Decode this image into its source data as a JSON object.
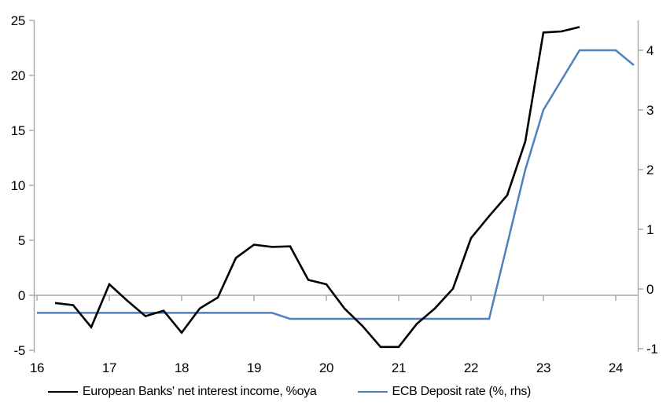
{
  "colors": {
    "background": "#FFFFFF",
    "axis": "#A6A6A6",
    "zero_line": "#A6A6A6",
    "text": "#000000",
    "series_black": "#000000",
    "series_blue": "#4E81BD"
  },
  "chart_data": {
    "type": "line",
    "title": "",
    "legend_position": "bottom",
    "grid": "zero-line-only",
    "x_axis": {
      "ticks": [
        16,
        17,
        18,
        19,
        20,
        21,
        22,
        23,
        24
      ],
      "labels": [
        "16",
        "17",
        "18",
        "19",
        "20",
        "21",
        "22",
        "23",
        "24"
      ],
      "range": [
        16,
        24.3
      ]
    },
    "left_axis": {
      "ticks": [
        25,
        20,
        15,
        10,
        5,
        0,
        -5
      ],
      "labels": [
        "25",
        "20",
        "15",
        "10",
        "5",
        "0",
        "-5"
      ],
      "range": [
        -5,
        25
      ]
    },
    "right_axis": {
      "ticks": [
        4,
        3,
        2,
        1,
        0,
        -1
      ],
      "labels": [
        "4",
        "3",
        "2",
        "1",
        "0",
        "-1"
      ],
      "range": [
        -1,
        4.5
      ]
    },
    "series": [
      {
        "name": "European Banks' net interest income, %oya",
        "color": "#000000",
        "axis": "left",
        "line_width": 2.6,
        "x": [
          16.25,
          16.5,
          16.75,
          17,
          17.25,
          17.5,
          17.75,
          18,
          18.25,
          18.5,
          18.75,
          19,
          19.25,
          19.5,
          19.75,
          20,
          20.25,
          20.5,
          20.75,
          21,
          21.25,
          21.5,
          21.75,
          22,
          22.25,
          22.5,
          22.75,
          23,
          23.25,
          23.5
        ],
        "y": [
          -0.7,
          -0.9,
          -2.9,
          1.0,
          -0.5,
          -1.9,
          -1.4,
          -3.4,
          -1.2,
          -0.2,
          3.4,
          4.6,
          4.4,
          4.45,
          1.4,
          1.0,
          -1.2,
          -2.8,
          -4.7,
          -4.7,
          -2.6,
          -1.2,
          0.6,
          5.2,
          7.2,
          9.1,
          14.0,
          23.9,
          24.0,
          24.4
        ]
      },
      {
        "name": "ECB Deposit rate (%, rhs)",
        "color": "#4E81BD",
        "axis": "right",
        "line_width": 2.5,
        "x": [
          16,
          16.25,
          16.5,
          16.75,
          17,
          17.25,
          17.5,
          17.75,
          18,
          18.25,
          18.5,
          18.75,
          19,
          19.25,
          19.5,
          19.75,
          20,
          20.25,
          20.5,
          20.75,
          21,
          21.25,
          21.5,
          21.75,
          22,
          22.25,
          22.5,
          22.75,
          23,
          23.25,
          23.5,
          23.75,
          24,
          24.25
        ],
        "y": [
          -0.4,
          -0.4,
          -0.4,
          -0.4,
          -0.4,
          -0.4,
          -0.4,
          -0.4,
          -0.4,
          -0.4,
          -0.4,
          -0.4,
          -0.4,
          -0.4,
          -0.5,
          -0.5,
          -0.5,
          -0.5,
          -0.5,
          -0.5,
          -0.5,
          -0.5,
          -0.5,
          -0.5,
          -0.5,
          -0.5,
          0.75,
          2.0,
          3.0,
          3.5,
          4.0,
          4.0,
          4.0,
          3.75
        ]
      }
    ]
  }
}
